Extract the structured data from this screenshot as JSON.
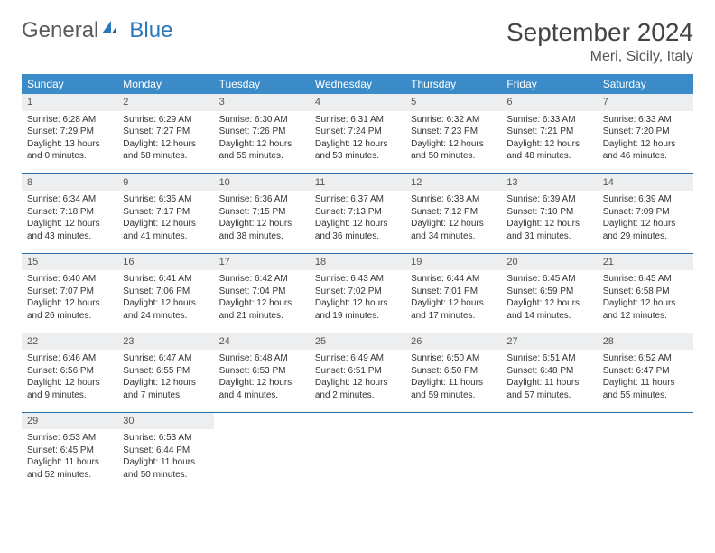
{
  "logo": {
    "part1": "General",
    "part2": "Blue"
  },
  "title": "September 2024",
  "location": "Meri, Sicily, Italy",
  "colors": {
    "header_bg": "#3b8bc9",
    "header_text": "#ffffff",
    "daynum_bg": "#eceeef",
    "border": "#2a6fa8",
    "logo_gray": "#5a5a5a",
    "logo_blue": "#2a78b8"
  },
  "weekdays": [
    "Sunday",
    "Monday",
    "Tuesday",
    "Wednesday",
    "Thursday",
    "Friday",
    "Saturday"
  ],
  "weeks": [
    [
      {
        "day": "1",
        "sunrise": "Sunrise: 6:28 AM",
        "sunset": "Sunset: 7:29 PM",
        "daylight": "Daylight: 13 hours and 0 minutes."
      },
      {
        "day": "2",
        "sunrise": "Sunrise: 6:29 AM",
        "sunset": "Sunset: 7:27 PM",
        "daylight": "Daylight: 12 hours and 58 minutes."
      },
      {
        "day": "3",
        "sunrise": "Sunrise: 6:30 AM",
        "sunset": "Sunset: 7:26 PM",
        "daylight": "Daylight: 12 hours and 55 minutes."
      },
      {
        "day": "4",
        "sunrise": "Sunrise: 6:31 AM",
        "sunset": "Sunset: 7:24 PM",
        "daylight": "Daylight: 12 hours and 53 minutes."
      },
      {
        "day": "5",
        "sunrise": "Sunrise: 6:32 AM",
        "sunset": "Sunset: 7:23 PM",
        "daylight": "Daylight: 12 hours and 50 minutes."
      },
      {
        "day": "6",
        "sunrise": "Sunrise: 6:33 AM",
        "sunset": "Sunset: 7:21 PM",
        "daylight": "Daylight: 12 hours and 48 minutes."
      },
      {
        "day": "7",
        "sunrise": "Sunrise: 6:33 AM",
        "sunset": "Sunset: 7:20 PM",
        "daylight": "Daylight: 12 hours and 46 minutes."
      }
    ],
    [
      {
        "day": "8",
        "sunrise": "Sunrise: 6:34 AM",
        "sunset": "Sunset: 7:18 PM",
        "daylight": "Daylight: 12 hours and 43 minutes."
      },
      {
        "day": "9",
        "sunrise": "Sunrise: 6:35 AM",
        "sunset": "Sunset: 7:17 PM",
        "daylight": "Daylight: 12 hours and 41 minutes."
      },
      {
        "day": "10",
        "sunrise": "Sunrise: 6:36 AM",
        "sunset": "Sunset: 7:15 PM",
        "daylight": "Daylight: 12 hours and 38 minutes."
      },
      {
        "day": "11",
        "sunrise": "Sunrise: 6:37 AM",
        "sunset": "Sunset: 7:13 PM",
        "daylight": "Daylight: 12 hours and 36 minutes."
      },
      {
        "day": "12",
        "sunrise": "Sunrise: 6:38 AM",
        "sunset": "Sunset: 7:12 PM",
        "daylight": "Daylight: 12 hours and 34 minutes."
      },
      {
        "day": "13",
        "sunrise": "Sunrise: 6:39 AM",
        "sunset": "Sunset: 7:10 PM",
        "daylight": "Daylight: 12 hours and 31 minutes."
      },
      {
        "day": "14",
        "sunrise": "Sunrise: 6:39 AM",
        "sunset": "Sunset: 7:09 PM",
        "daylight": "Daylight: 12 hours and 29 minutes."
      }
    ],
    [
      {
        "day": "15",
        "sunrise": "Sunrise: 6:40 AM",
        "sunset": "Sunset: 7:07 PM",
        "daylight": "Daylight: 12 hours and 26 minutes."
      },
      {
        "day": "16",
        "sunrise": "Sunrise: 6:41 AM",
        "sunset": "Sunset: 7:06 PM",
        "daylight": "Daylight: 12 hours and 24 minutes."
      },
      {
        "day": "17",
        "sunrise": "Sunrise: 6:42 AM",
        "sunset": "Sunset: 7:04 PM",
        "daylight": "Daylight: 12 hours and 21 minutes."
      },
      {
        "day": "18",
        "sunrise": "Sunrise: 6:43 AM",
        "sunset": "Sunset: 7:02 PM",
        "daylight": "Daylight: 12 hours and 19 minutes."
      },
      {
        "day": "19",
        "sunrise": "Sunrise: 6:44 AM",
        "sunset": "Sunset: 7:01 PM",
        "daylight": "Daylight: 12 hours and 17 minutes."
      },
      {
        "day": "20",
        "sunrise": "Sunrise: 6:45 AM",
        "sunset": "Sunset: 6:59 PM",
        "daylight": "Daylight: 12 hours and 14 minutes."
      },
      {
        "day": "21",
        "sunrise": "Sunrise: 6:45 AM",
        "sunset": "Sunset: 6:58 PM",
        "daylight": "Daylight: 12 hours and 12 minutes."
      }
    ],
    [
      {
        "day": "22",
        "sunrise": "Sunrise: 6:46 AM",
        "sunset": "Sunset: 6:56 PM",
        "daylight": "Daylight: 12 hours and 9 minutes."
      },
      {
        "day": "23",
        "sunrise": "Sunrise: 6:47 AM",
        "sunset": "Sunset: 6:55 PM",
        "daylight": "Daylight: 12 hours and 7 minutes."
      },
      {
        "day": "24",
        "sunrise": "Sunrise: 6:48 AM",
        "sunset": "Sunset: 6:53 PM",
        "daylight": "Daylight: 12 hours and 4 minutes."
      },
      {
        "day": "25",
        "sunrise": "Sunrise: 6:49 AM",
        "sunset": "Sunset: 6:51 PM",
        "daylight": "Daylight: 12 hours and 2 minutes."
      },
      {
        "day": "26",
        "sunrise": "Sunrise: 6:50 AM",
        "sunset": "Sunset: 6:50 PM",
        "daylight": "Daylight: 11 hours and 59 minutes."
      },
      {
        "day": "27",
        "sunrise": "Sunrise: 6:51 AM",
        "sunset": "Sunset: 6:48 PM",
        "daylight": "Daylight: 11 hours and 57 minutes."
      },
      {
        "day": "28",
        "sunrise": "Sunrise: 6:52 AM",
        "sunset": "Sunset: 6:47 PM",
        "daylight": "Daylight: 11 hours and 55 minutes."
      }
    ],
    [
      {
        "day": "29",
        "sunrise": "Sunrise: 6:53 AM",
        "sunset": "Sunset: 6:45 PM",
        "daylight": "Daylight: 11 hours and 52 minutes."
      },
      {
        "day": "30",
        "sunrise": "Sunrise: 6:53 AM",
        "sunset": "Sunset: 6:44 PM",
        "daylight": "Daylight: 11 hours and 50 minutes."
      },
      null,
      null,
      null,
      null,
      null
    ]
  ]
}
